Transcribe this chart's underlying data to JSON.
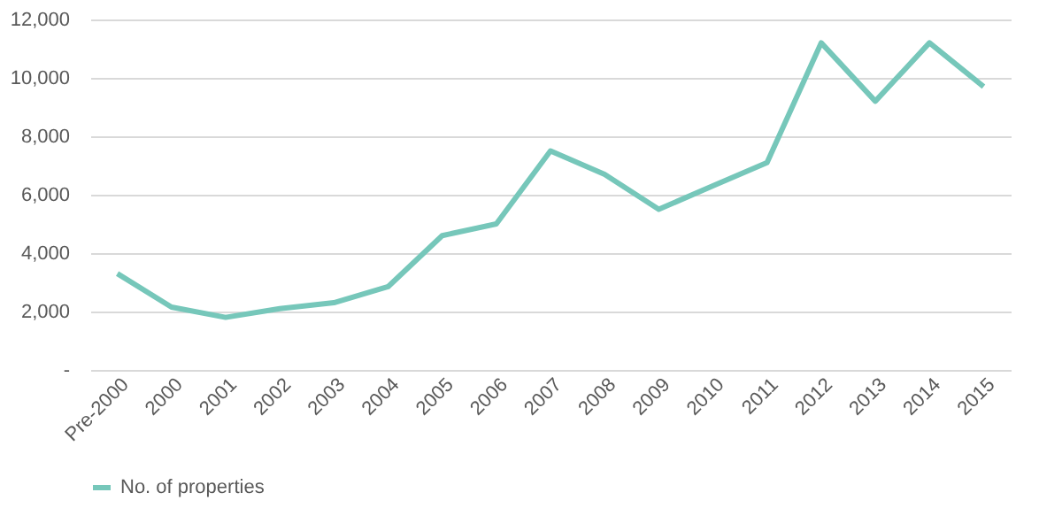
{
  "chart_data": {
    "type": "line",
    "categories": [
      "Pre-2000",
      "2000",
      "2001",
      "2002",
      "2003",
      "2004",
      "2005",
      "2006",
      "2007",
      "2008",
      "2009",
      "2010",
      "2011",
      "2012",
      "2013",
      "2014",
      "2015"
    ],
    "series": [
      {
        "name": "No. of properties",
        "color": "#76c7ba",
        "values": [
          3300,
          2150,
          1800,
          2100,
          2300,
          2850,
          4600,
          5000,
          7500,
          6700,
          5500,
          6300,
          7100,
          11200,
          9200,
          11200,
          9700
        ]
      }
    ],
    "ylim": [
      0,
      12000
    ],
    "yticks": [
      {
        "value": 0,
        "label": "-"
      },
      {
        "value": 2000,
        "label": "2,000"
      },
      {
        "value": 4000,
        "label": "4,000"
      },
      {
        "value": 6000,
        "label": "6,000"
      },
      {
        "value": 8000,
        "label": "8,000"
      },
      {
        "value": 10000,
        "label": "10,000"
      },
      {
        "value": 12000,
        "label": "12,000"
      }
    ],
    "grid": "y",
    "legend": "bottom",
    "marker": "none",
    "line_style": "solid"
  }
}
